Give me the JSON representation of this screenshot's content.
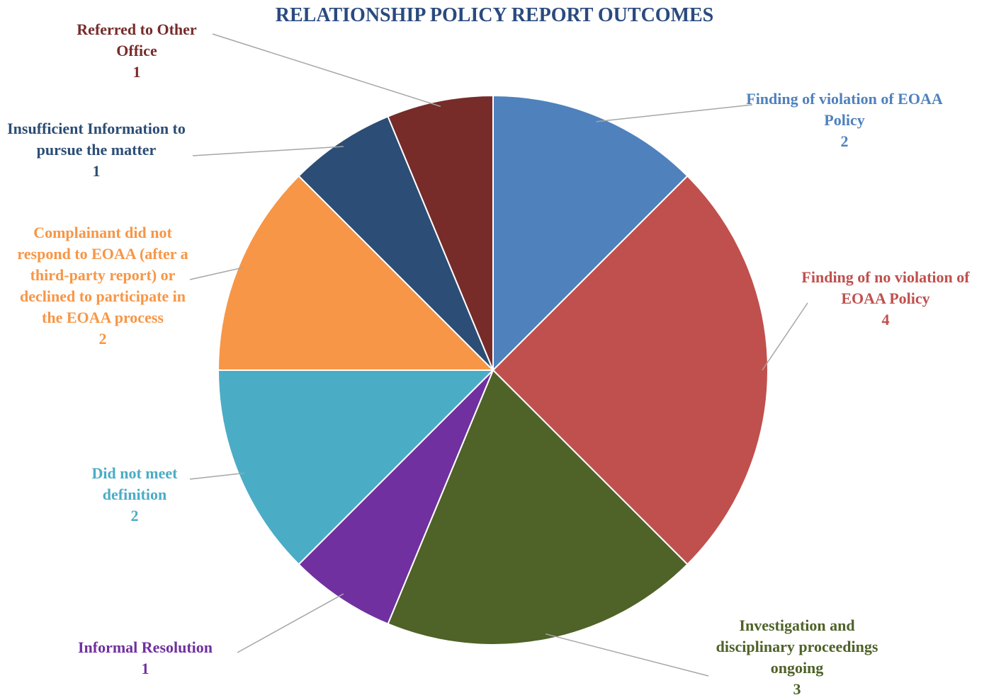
{
  "chart_data": {
    "type": "pie",
    "title": "RELATIONSHIP POLICY REPORT OUTCOMES",
    "categories": [
      "Finding of violation of EOAA Policy",
      "Finding of no violation of EOAA Policy",
      "Investigation and disciplinary proceedings ongoing",
      "Informal Resolution",
      "Did not meet definition",
      "Complainant did not respond to EOAA (after a third-party report) or declined to participate in the EOAA process",
      "Insufficient Information to pursue the matter",
      "Referred to Other Office"
    ],
    "values": [
      2,
      4,
      3,
      1,
      2,
      2,
      1,
      1
    ],
    "colors": [
      "#4f81bd",
      "#c0504d",
      "#4f6228",
      "#7030a0",
      "#4bacc6",
      "#f79646",
      "#2c4d75",
      "#772c2a"
    ]
  }
}
